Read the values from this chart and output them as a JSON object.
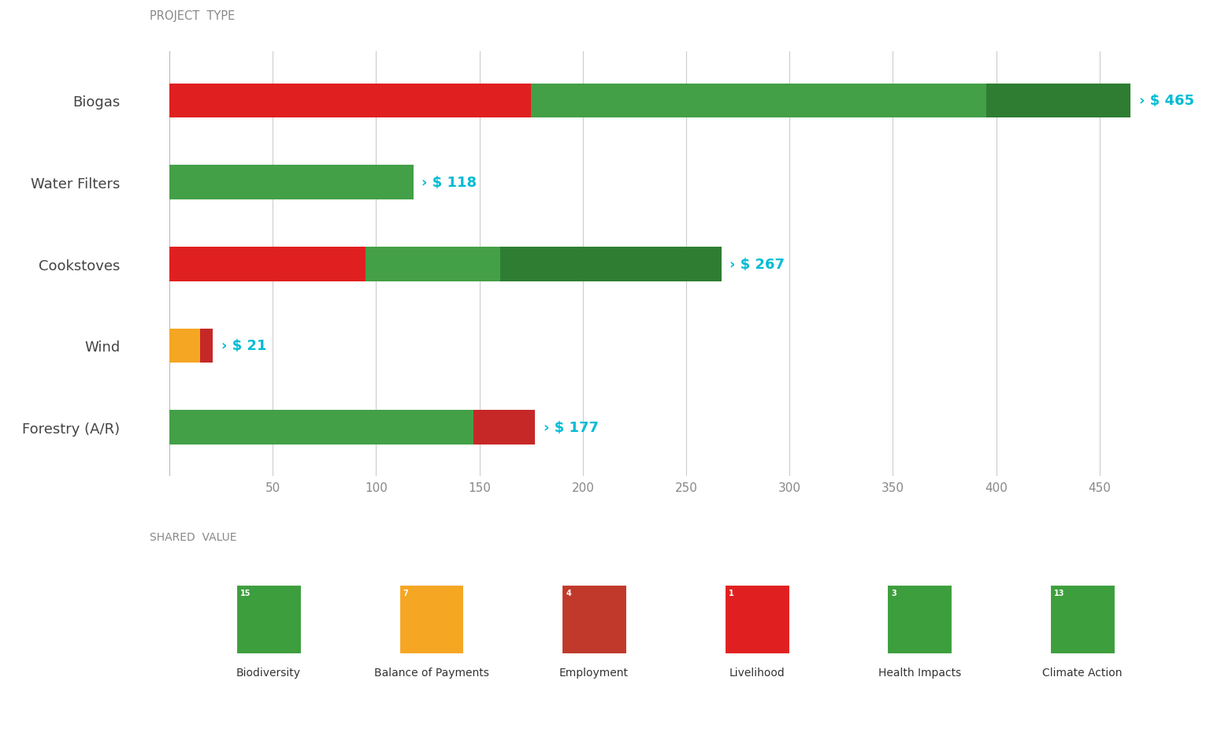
{
  "title": "PROJECT  TYPE",
  "xlabel": "SHARED  VALUE",
  "categories": [
    "Biogas",
    "Water Filters",
    "Cookstoves",
    "Wind",
    "Forestry (A/R)"
  ],
  "total_values": [
    465,
    118,
    267,
    21,
    177
  ],
  "segments": [
    [
      {
        "color": "#e02020",
        "value": 175
      },
      {
        "color": "#43a047",
        "value": 220
      },
      {
        "color": "#2e7d32",
        "value": 70
      }
    ],
    [
      {
        "color": "#43a047",
        "value": 118
      }
    ],
    [
      {
        "color": "#e02020",
        "value": 95
      },
      {
        "color": "#43a047",
        "value": 65
      },
      {
        "color": "#2e7d32",
        "value": 107
      }
    ],
    [
      {
        "color": "#f5a623",
        "value": 15
      },
      {
        "color": "#c62828",
        "value": 6
      }
    ],
    [
      {
        "color": "#43a047",
        "value": 147
      },
      {
        "color": "#c62828",
        "value": 30
      }
    ]
  ],
  "xlim": [
    0,
    480
  ],
  "xticks": [
    50,
    100,
    150,
    200,
    250,
    300,
    350,
    400,
    450
  ],
  "background_color": "#ffffff",
  "bar_height": 0.42,
  "sdg_labels": [
    "Biodiversity",
    "Balance of Payments",
    "Employment",
    "Livelihood",
    "Health Impacts",
    "Climate Action"
  ],
  "sdg_numbers": [
    "15",
    "7",
    "4",
    "1",
    "3",
    "13"
  ],
  "sdg_bg_colors": [
    "#3d9e3d",
    "#f5a623",
    "#c0392b",
    "#e02020",
    "#3d9e3d",
    "#3d9e3d"
  ],
  "arrow_color": "#00bcd4",
  "label_fontsize": 13,
  "tick_fontsize": 11,
  "value_label_fontsize": 13
}
